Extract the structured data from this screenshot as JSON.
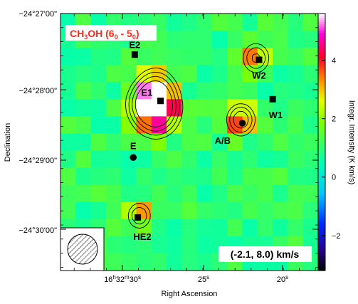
{
  "chart_data": {
    "type": "heatmap",
    "title": "CH3OH (60 - 50)",
    "title_parts": {
      "species": "CH",
      "sub1": "3",
      "mid": "OH (6",
      "sub2": "0",
      "dash": " - 5",
      "sub3": "0",
      "close": ")"
    },
    "velocity_label": "(-2.1, 8.0) km/s",
    "xlabel": "Right Ascension",
    "ylabel": "Declination",
    "colorbar_label": "Integr. Intensity (K km/s)",
    "x_ticks": [
      {
        "main": "16",
        "sup1": "h",
        "mid": "32",
        "sup2": "m",
        "end": "30",
        "sup3": "s"
      },
      {
        "main": "25",
        "sup3": "s"
      },
      {
        "main": "20",
        "sup3": "s"
      }
    ],
    "y_ticks": [
      "−24°27'00\"",
      "−24°28'00\"",
      "−24°29'00\"",
      "−24°30'00\""
    ],
    "colorbar_ticks": [
      -2,
      0,
      2,
      4
    ],
    "colorbar_range": [
      -3.2,
      5.6
    ],
    "grid": {
      "cols": 17,
      "rows": 15
    },
    "peaks": [
      {
        "col": 6.3,
        "row": 5.6,
        "amp": 6.2,
        "sigma": 0.9
      },
      {
        "col": 6.3,
        "row": 4.4,
        "amp": 2.6,
        "sigma": 0.8
      },
      {
        "col": 5.4,
        "row": 5.2,
        "amp": 1.5,
        "sigma": 0.7
      },
      {
        "col": 11.9,
        "row": 6.2,
        "amp": 3.4,
        "sigma": 0.6
      },
      {
        "col": 12.9,
        "row": 2.6,
        "amp": 2.7,
        "sigma": 0.6
      },
      {
        "col": 5.2,
        "row": 11.8,
        "amp": 2.4,
        "sigma": 0.55
      }
    ],
    "background": 1.0,
    "sources": [
      {
        "name": "E1",
        "col": 6.6,
        "row": 5.1,
        "marker": "square",
        "label_dx": -0.9,
        "label_dy": -0.5
      },
      {
        "name": "E2",
        "col": 4.9,
        "row": 2.4,
        "marker": "square",
        "label_dx": 0.0,
        "label_dy": -0.6
      },
      {
        "name": "W2",
        "col": 13.1,
        "row": 2.7,
        "marker": "square",
        "label_dx": 0.0,
        "label_dy": 0.9
      },
      {
        "name": "W1",
        "col": 14.0,
        "row": 5.0,
        "marker": "square",
        "label_dx": 0.2,
        "label_dy": 0.9
      },
      {
        "name": "A/B",
        "col": 12.0,
        "row": 6.4,
        "marker": "circle",
        "label_dx": -1.3,
        "label_dy": 1.0
      },
      {
        "name": "E",
        "col": 4.8,
        "row": 8.4,
        "marker": "circle",
        "label_dx": 0.0,
        "label_dy": -0.7
      },
      {
        "name": "HE2",
        "col": 5.1,
        "row": 11.9,
        "marker": "square",
        "label_dx": 0.3,
        "label_dy": 1.1
      }
    ],
    "contour_levels": [
      2.0,
      2.6,
      3.4,
      4.4
    ]
  },
  "colors": {
    "frame": "#000000",
    "title_text": "#ff2a1a",
    "badge_bg": "#ffffff"
  }
}
